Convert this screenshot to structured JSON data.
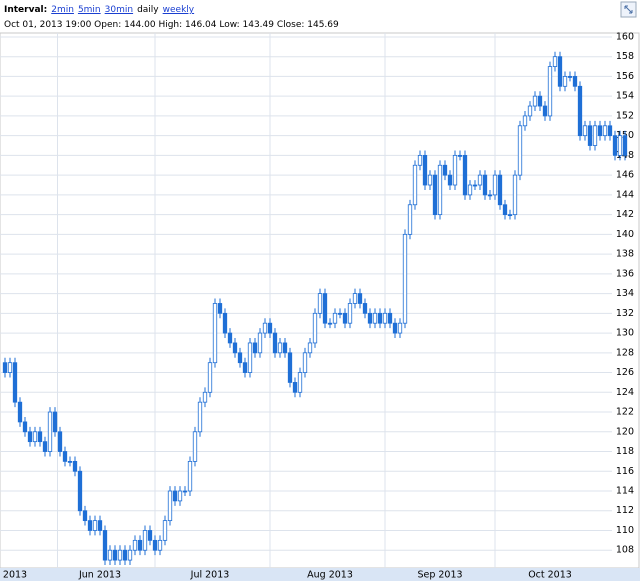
{
  "header": {
    "interval_label": "Interval:",
    "interval_options": [
      "2min",
      "5min",
      "30min",
      "daily",
      "weekly"
    ],
    "selected": "daily",
    "info": "Oct 01, 2013 19:00 Open: 144.00 High: 146.04 Low: 143.49 Close: 145.69"
  },
  "chart_data": {
    "type": "candlestick",
    "color": "#1f6fd6",
    "grid": true,
    "ylim": [
      106.2,
      160.4
    ],
    "yticks": [
      108,
      110,
      112,
      114,
      116,
      118,
      120,
      122,
      124,
      126,
      128,
      130,
      132,
      134,
      136,
      138,
      140,
      142,
      144,
      146,
      148,
      150,
      152,
      154,
      156,
      158,
      160
    ],
    "categories": [
      null,
      null,
      "2013",
      null,
      null,
      null,
      null,
      null,
      null,
      null,
      null,
      null,
      null,
      null,
      null,
      null,
      null,
      null,
      null,
      "Jun 2013",
      null,
      null,
      null,
      null,
      null,
      null,
      null,
      null,
      null,
      null,
      null,
      null,
      null,
      null,
      null,
      null,
      null,
      null,
      null,
      null,
      null,
      "Jul 2013",
      null,
      null,
      null,
      null,
      null,
      null,
      null,
      null,
      null,
      null,
      null,
      null,
      null,
      null,
      null,
      null,
      null,
      null,
      null,
      null,
      null,
      null,
      null,
      "Aug 2013",
      null,
      null,
      null,
      null,
      null,
      null,
      null,
      null,
      null,
      null,
      null,
      null,
      null,
      null,
      null,
      null,
      null,
      null,
      null,
      null,
      null,
      "Sep 2013",
      null,
      null,
      null,
      null,
      null,
      null,
      null,
      null,
      null,
      null,
      null,
      null,
      null,
      null,
      null,
      null,
      null,
      null,
      null,
      null,
      null,
      "Oct 2013",
      null,
      null,
      null,
      null,
      null,
      null,
      null,
      null,
      null,
      null,
      null,
      null,
      null,
      null,
      null
    ],
    "open": [
      127,
      126,
      127,
      123,
      121,
      120,
      119,
      120,
      119,
      118,
      122,
      120,
      118,
      117,
      117,
      116,
      112,
      111,
      110,
      111,
      110,
      107,
      108,
      107,
      108,
      107,
      108,
      109,
      108,
      110,
      109,
      108,
      109,
      111,
      114,
      113,
      114,
      114,
      117,
      120,
      123,
      124,
      127,
      133,
      132,
      130,
      129,
      128,
      127,
      126,
      129,
      128,
      130,
      131,
      130,
      128,
      129,
      128,
      125,
      124,
      126,
      128,
      129,
      132,
      134,
      131,
      131,
      132,
      132,
      131,
      133,
      134,
      133,
      132,
      131,
      132,
      131,
      132,
      131,
      130,
      131,
      140,
      143,
      147,
      148,
      145,
      146,
      142,
      147,
      146,
      145,
      148,
      148,
      144,
      145,
      145,
      146,
      144,
      144,
      146,
      143,
      142,
      142,
      146,
      151,
      152,
      153,
      154,
      153,
      152,
      157,
      158,
      155,
      156,
      156,
      155,
      150,
      151,
      149,
      151,
      150,
      151,
      150,
      148,
      150
    ],
    "high": [
      127.5,
      127.5,
      127.5,
      123.5,
      121.5,
      120.5,
      120.5,
      120.5,
      119.5,
      122.5,
      122.5,
      120.5,
      118.5,
      117.5,
      117.5,
      116.5,
      112.5,
      111.5,
      111.5,
      111.5,
      110.5,
      108.5,
      108.5,
      108.5,
      108.5,
      108.5,
      109.5,
      109.5,
      110.5,
      110.5,
      109.5,
      109.5,
      111.5,
      114.5,
      114.5,
      114.5,
      114.5,
      117.5,
      120.5,
      123.5,
      124.5,
      127.5,
      133.5,
      133.5,
      132.5,
      130.5,
      129.5,
      128.5,
      127.5,
      129.5,
      129.5,
      130.5,
      131.5,
      131.5,
      130.5,
      129.5,
      129.5,
      128.5,
      125.5,
      126.5,
      128.5,
      129.5,
      132.5,
      134.5,
      134.5,
      131.5,
      132.5,
      132.5,
      132.5,
      133.5,
      134.5,
      134.5,
      133.5,
      132.5,
      132.5,
      132.5,
      132.5,
      132.5,
      131.5,
      131.5,
      140.5,
      143.5,
      147.5,
      148.5,
      148.5,
      146.5,
      146.5,
      147.5,
      147.5,
      146.5,
      148.5,
      148.5,
      148.5,
      145.5,
      145.5,
      146.5,
      146.5,
      144.5,
      146.5,
      146.5,
      143.5,
      142.5,
      146.5,
      151.5,
      152.5,
      153.5,
      154.5,
      154.5,
      153.5,
      157.5,
      158.5,
      158.5,
      156.5,
      156.5,
      156.5,
      155.5,
      151.5,
      151.5,
      151.5,
      151.5,
      151.5,
      151.5,
      150.5,
      150.5,
      150.5
    ],
    "low": [
      125.5,
      125.5,
      122.5,
      120.5,
      119.5,
      118.5,
      118.5,
      118.5,
      117.5,
      117.5,
      119.5,
      117.5,
      116.5,
      116.5,
      115.5,
      111.5,
      110.5,
      109.5,
      109.5,
      109.5,
      106.5,
      106.5,
      106.5,
      106.5,
      106.5,
      106.5,
      107.5,
      107.5,
      107.5,
      108.5,
      107.5,
      107.5,
      108.5,
      110.5,
      112.5,
      112.5,
      113.5,
      113.5,
      116.5,
      119.5,
      122.5,
      123.5,
      126.5,
      131.5,
      129.5,
      128.5,
      127.5,
      126.5,
      125.5,
      125.5,
      127.5,
      127.5,
      129.5,
      129.5,
      127.5,
      127.5,
      127.5,
      124.5,
      123.5,
      123.5,
      125.5,
      127.5,
      128.5,
      131.5,
      130.5,
      130.5,
      130.5,
      131.5,
      130.5,
      130.5,
      132.5,
      132.5,
      131.5,
      130.5,
      130.5,
      130.5,
      130.5,
      130.5,
      129.5,
      129.5,
      130.5,
      139.5,
      142.5,
      146.5,
      144.5,
      144.5,
      141.5,
      141.5,
      145.5,
      144.5,
      144.5,
      147.5,
      143.5,
      143.5,
      144.5,
      144.5,
      143.5,
      143.5,
      143.5,
      142.5,
      141.5,
      141.5,
      141.5,
      145.5,
      150.5,
      151.5,
      152.5,
      152.5,
      151.5,
      151.5,
      156.5,
      154.5,
      154.5,
      155.5,
      154.5,
      149.5,
      149.5,
      148.5,
      148.5,
      149.5,
      149.5,
      149.5,
      147.5,
      147.5,
      147.5
    ],
    "close": [
      126,
      127,
      123,
      121,
      120,
      119,
      120,
      119,
      118,
      122,
      120,
      118,
      117,
      117,
      116,
      112,
      111,
      110,
      111,
      110,
      107,
      108,
      107,
      108,
      107,
      108,
      109,
      108,
      110,
      109,
      108,
      109,
      111,
      114,
      113,
      114,
      114,
      117,
      120,
      123,
      124,
      127,
      133,
      132,
      130,
      129,
      128,
      127,
      126,
      129,
      128,
      130,
      131,
      130,
      128,
      129,
      128,
      125,
      124,
      126,
      128,
      129,
      132,
      134,
      131,
      131,
      132,
      132,
      131,
      133,
      134,
      133,
      132,
      131,
      132,
      131,
      132,
      131,
      130,
      131,
      140,
      143,
      147,
      148,
      145,
      146,
      142,
      147,
      146,
      145,
      148,
      148,
      144,
      145,
      145,
      146,
      144,
      144,
      146,
      143,
      142,
      142,
      146,
      151,
      152,
      153,
      154,
      153,
      152,
      157,
      158,
      155,
      156,
      156,
      155,
      150,
      151,
      149,
      151,
      150,
      151,
      150,
      148,
      150,
      148
    ]
  }
}
